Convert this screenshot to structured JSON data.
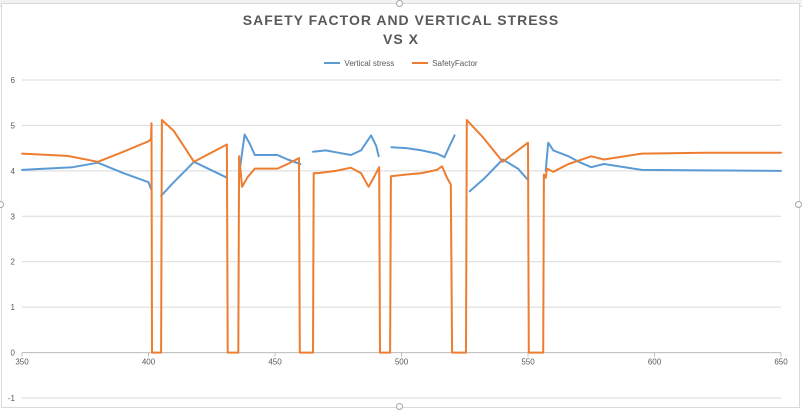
{
  "chart_data": {
    "type": "line",
    "title_lines": [
      "SAFETY FACTOR AND VERTICAL STRESS",
      "VS X"
    ],
    "xlim": [
      350,
      650
    ],
    "ylim": [
      -1,
      6
    ],
    "x_ticks": [
      350,
      400,
      450,
      500,
      550,
      600,
      650
    ],
    "y_ticks": [
      -1,
      0,
      1,
      2,
      3,
      4,
      5,
      6
    ],
    "grid": "horizontal",
    "legend_position": "top",
    "series": [
      {
        "name": "Vertical stress",
        "color": "#5b9bd5",
        "segments": [
          [
            [
              350,
              4.02
            ],
            [
              370,
              4.08
            ],
            [
              380,
              4.18
            ],
            [
              390,
              3.95
            ],
            [
              400,
              3.75
            ],
            [
              401,
              3.6
            ]
          ],
          [
            [
              405,
              3.45
            ],
            [
              410,
              3.75
            ],
            [
              418,
              4.2
            ],
            [
              431,
              3.85
            ]
          ],
          [
            [
              436,
              4.0
            ],
            [
              438,
              4.8
            ],
            [
              440,
              4.6
            ],
            [
              442,
              4.35
            ],
            [
              444,
              4.35
            ],
            [
              451,
              4.35
            ],
            [
              455,
              4.25
            ],
            [
              460,
              4.15
            ]
          ],
          [
            [
              465,
              4.42
            ],
            [
              470,
              4.45
            ],
            [
              475,
              4.4
            ],
            [
              480,
              4.35
            ],
            [
              484,
              4.45
            ],
            [
              488,
              4.78
            ],
            [
              490,
              4.55
            ],
            [
              491,
              4.32
            ]
          ],
          [
            [
              496,
              4.52
            ],
            [
              502,
              4.5
            ],
            [
              508,
              4.45
            ],
            [
              514,
              4.38
            ],
            [
              517,
              4.3
            ],
            [
              519,
              4.55
            ],
            [
              521,
              4.78
            ]
          ],
          [
            [
              527,
              3.55
            ],
            [
              533,
              3.85
            ],
            [
              540,
              4.25
            ],
            [
              546,
              4.05
            ],
            [
              550,
              3.8
            ]
          ],
          [
            [
              557,
              4.0
            ],
            [
              558,
              4.62
            ],
            [
              560,
              4.45
            ],
            [
              566,
              4.32
            ],
            [
              570,
              4.2
            ],
            [
              575,
              4.08
            ],
            [
              580,
              4.15
            ],
            [
              595,
              4.02
            ],
            [
              620,
              4.01
            ],
            [
              650,
              4.0
            ]
          ]
        ]
      },
      {
        "name": "SafetyFactor",
        "color": "#ed7d31",
        "segments": [
          [
            [
              350,
              4.38
            ],
            [
              368,
              4.33
            ],
            [
              380,
              4.2
            ],
            [
              390,
              4.42
            ],
            [
              400,
              4.65
            ],
            [
              401,
              4.7
            ],
            [
              401.2,
              5.05
            ],
            [
              401.4,
              0
            ],
            [
              405,
              0
            ],
            [
              405.3,
              5.12
            ],
            [
              410,
              4.88
            ],
            [
              418,
              4.2
            ],
            [
              431,
              4.58
            ],
            [
              431.3,
              0
            ],
            [
              435.5,
              0
            ],
            [
              435.8,
              4.32
            ],
            [
              437,
              3.65
            ],
            [
              439,
              3.85
            ],
            [
              442,
              4.05
            ],
            [
              451,
              4.05
            ],
            [
              455,
              4.15
            ],
            [
              459.5,
              4.28
            ],
            [
              459.8,
              0
            ],
            [
              465,
              0
            ],
            [
              465.3,
              3.95
            ],
            [
              467,
              3.95
            ],
            [
              474,
              4.0
            ],
            [
              480,
              4.07
            ],
            [
              484,
              3.95
            ],
            [
              487,
              3.65
            ],
            [
              489,
              3.85
            ],
            [
              491.2,
              4.08
            ],
            [
              491.5,
              0
            ],
            [
              495.5,
              0
            ],
            [
              495.8,
              3.88
            ],
            [
              502,
              3.92
            ],
            [
              508,
              3.95
            ],
            [
              514,
              4.02
            ],
            [
              516,
              4.1
            ],
            [
              518,
              3.85
            ],
            [
              519.5,
              3.7
            ],
            [
              520,
              0
            ],
            [
              525.5,
              0
            ],
            [
              525.8,
              5.12
            ],
            [
              532,
              4.75
            ],
            [
              540,
              4.2
            ],
            [
              550,
              4.62
            ],
            [
              550.3,
              0
            ],
            [
              556,
              0
            ],
            [
              556.3,
              3.92
            ],
            [
              557,
              3.85
            ],
            [
              557.5,
              4.05
            ],
            [
              560,
              3.98
            ],
            [
              566,
              4.15
            ],
            [
              575,
              4.32
            ],
            [
              580,
              4.25
            ],
            [
              595,
              4.38
            ],
            [
              620,
              4.4
            ],
            [
              650,
              4.4
            ]
          ]
        ]
      }
    ]
  }
}
